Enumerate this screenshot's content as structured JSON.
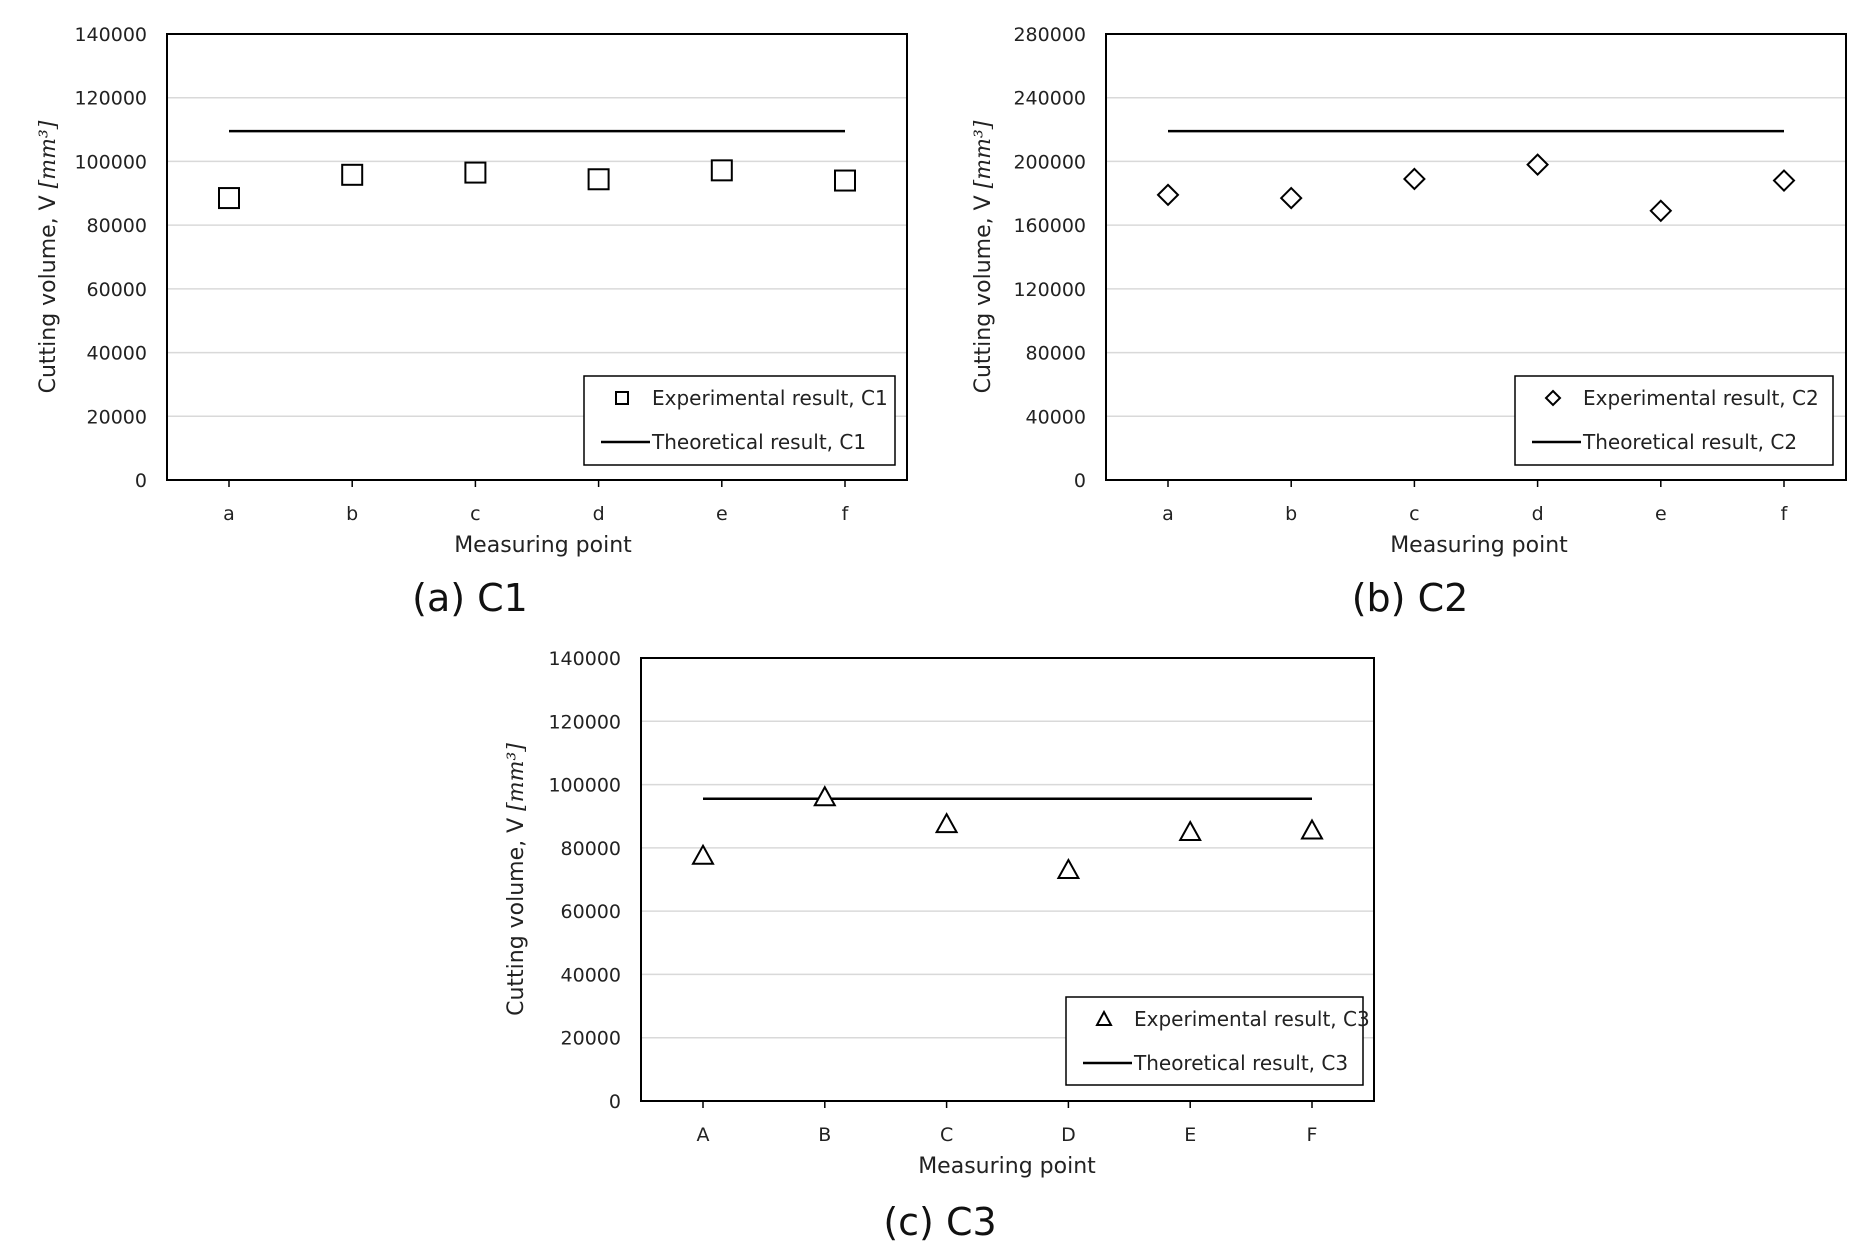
{
  "colors": {
    "marker": "#000000",
    "line": "#000000",
    "grid": "#d9d9d9",
    "frame": "#000000"
  },
  "chart_data": [
    {
      "type": "scatter",
      "caption": "(a) C1",
      "xlabel": "Measuring point",
      "ylabel": "Cutting  volume, V ",
      "ylabel_unit": "[mm³]",
      "categories": [
        "a",
        "b",
        "c",
        "d",
        "e",
        "f"
      ],
      "ylim": [
        0,
        140000
      ],
      "yticks": [
        "0",
        "20000",
        "40000",
        "60000",
        "80000",
        "100000",
        "120000",
        "140000"
      ],
      "grid": true,
      "legend_position": "bottom-right",
      "marker": "square",
      "series": [
        {
          "name": "Experimental result, C1",
          "kind": "markers",
          "values": [
            88500,
            95800,
            96500,
            94400,
            97200,
            94000
          ]
        },
        {
          "name": "Theoretical result, C1",
          "kind": "line",
          "values": [
            109500,
            109500,
            109500,
            109500,
            109500,
            109500
          ]
        }
      ]
    },
    {
      "type": "scatter",
      "caption": "(b) C2",
      "xlabel": "Measuring point",
      "ylabel": "Cutting volume, V ",
      "ylabel_unit": "[mm³]",
      "categories": [
        "a",
        "b",
        "c",
        "d",
        "e",
        "f"
      ],
      "ylim": [
        0,
        280000
      ],
      "yticks": [
        "0",
        "40000",
        "80000",
        "120000",
        "160000",
        "200000",
        "240000",
        "280000"
      ],
      "grid": true,
      "legend_position": "bottom-right",
      "marker": "diamond",
      "series": [
        {
          "name": "Experimental result, C2",
          "kind": "markers",
          "values": [
            179000,
            177000,
            189000,
            198000,
            169000,
            188000
          ]
        },
        {
          "name": "Theoretical result, C2",
          "kind": "line",
          "values": [
            219000,
            219000,
            219000,
            219000,
            219000,
            219000
          ]
        }
      ]
    },
    {
      "type": "scatter",
      "caption": "(c) C3",
      "xlabel": "Measuring point",
      "ylabel": "Cutting volume, V ",
      "ylabel_unit": "[mm³]",
      "categories": [
        "A",
        "B",
        "C",
        "D",
        "E",
        "F"
      ],
      "ylim": [
        0,
        140000
      ],
      "yticks": [
        "0",
        "20000",
        "40000",
        "60000",
        "80000",
        "100000",
        "120000",
        "140000"
      ],
      "grid": true,
      "legend_position": "bottom-right",
      "marker": "triangle",
      "series": [
        {
          "name": "Experimental result, C3",
          "kind": "markers",
          "values": [
            77500,
            96000,
            87500,
            73000,
            85000,
            85500
          ]
        },
        {
          "name": "Theoretical result, C3",
          "kind": "line",
          "values": [
            95500,
            95500,
            95500,
            95500,
            95500,
            95500
          ]
        }
      ]
    }
  ]
}
